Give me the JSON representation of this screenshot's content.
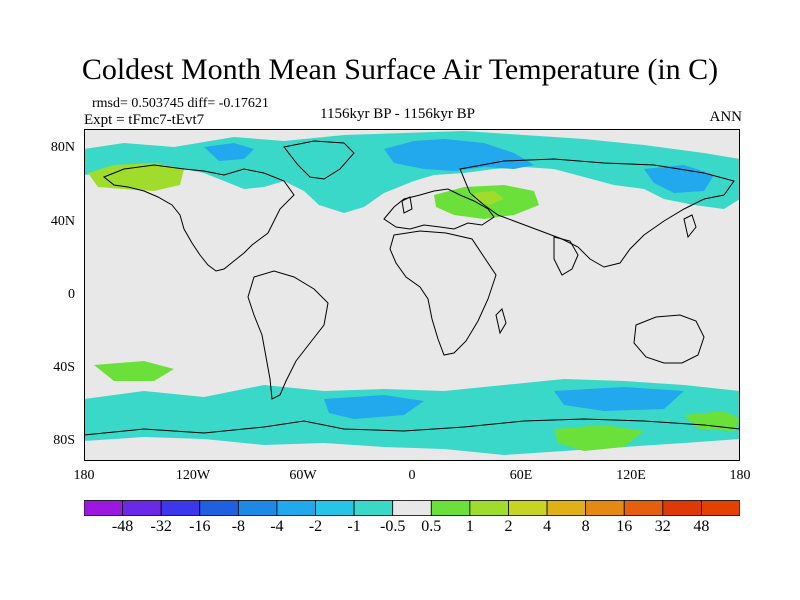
{
  "header": {
    "title": "Coldest Month Mean Surface Air Temperature (in C)",
    "stats": "rmsd= 0.503745 diff= -0.17621",
    "experiment": "Expt = tFmc7-tEvt7",
    "period": "1156kyr BP - 1156kyr BP",
    "season": "ANN"
  },
  "axes": {
    "lat_labels": [
      "80N",
      "40N",
      "0",
      "40S",
      "80S"
    ],
    "lon_labels": [
      "180",
      "120W",
      "60W",
      "0",
      "60E",
      "120E",
      "180"
    ]
  },
  "colorbar": {
    "labels": [
      "-48",
      "-32",
      "-16",
      "-8",
      "-4",
      "-2",
      "-1",
      "-0.5",
      "0.5",
      "1",
      "2",
      "4",
      "8",
      "16",
      "32",
      "48"
    ],
    "colors": [
      "#9a18e0",
      "#6a28e8",
      "#3a38ea",
      "#2060e0",
      "#1e88e6",
      "#22a8ec",
      "#26c4e6",
      "#3ad8c8",
      "#e8e8e8",
      "#6ce03a",
      "#a0dc2c",
      "#c8d424",
      "#e0b018",
      "#e48a14",
      "#e4600e",
      "#de3a08",
      "#e44000"
    ]
  },
  "map": {
    "background": "#e8e8e8",
    "regions": [
      {
        "name": "arctic-russia-blue",
        "color": "#26a4ea"
      },
      {
        "name": "arctic-cyan",
        "color": "#3ad8c8"
      },
      {
        "name": "alaska-green",
        "color": "#a0dc2c"
      },
      {
        "name": "europe-green",
        "color": "#6ce03a"
      },
      {
        "name": "southern-ocean-cyan",
        "color": "#3ad8c8"
      },
      {
        "name": "antarctic-green",
        "color": "#6ce03a"
      }
    ]
  }
}
